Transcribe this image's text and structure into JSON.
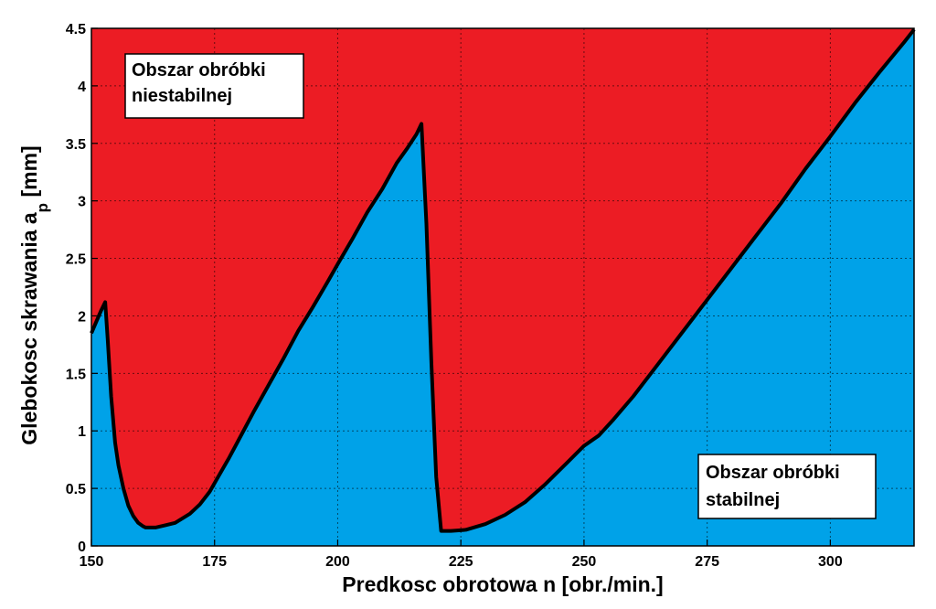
{
  "chart_data": {
    "type": "area",
    "title": "",
    "xlabel": "Predkosc obrotowa n [obr./min.]",
    "ylabel_main": "Glebokosc skrawania a",
    "ylabel_sub": "p",
    "ylabel_unit": " [mm]",
    "xlim": [
      150,
      317
    ],
    "ylim": [
      0,
      4.5
    ],
    "grid": true,
    "x_ticks": [
      150,
      175,
      200,
      225,
      250,
      275,
      300
    ],
    "y_ticks": [
      0,
      0.5,
      1,
      1.5,
      2,
      2.5,
      3,
      3.5,
      4,
      4.5
    ],
    "y_tick_labels": [
      "0",
      "0.5",
      "1",
      "1.5",
      "2",
      "2.5",
      "3",
      "3.5",
      "4",
      "4.5"
    ],
    "colors": {
      "unstable": "#ec1c24",
      "stable": "#00a2e8",
      "boundary": "#000000"
    },
    "series": [
      {
        "name": "stability boundary",
        "x": [
          150,
          151,
          152,
          152.8,
          153.3,
          154,
          154.8,
          155.5,
          156.5,
          157.5,
          158.5,
          159.5,
          160.5,
          161,
          162,
          163,
          165,
          167,
          170,
          172,
          174,
          176,
          178,
          180,
          183,
          186,
          189,
          192,
          195,
          198,
          200,
          203,
          206,
          209,
          212,
          214,
          216,
          217,
          218,
          219,
          220,
          221,
          223,
          226,
          230,
          234,
          238,
          242,
          246,
          250,
          253,
          256,
          260,
          265,
          270,
          275,
          280,
          285,
          290,
          295,
          300,
          305,
          310,
          315,
          317
        ],
        "y": [
          1.85,
          1.95,
          2.05,
          2.12,
          1.8,
          1.3,
          0.9,
          0.7,
          0.5,
          0.35,
          0.26,
          0.2,
          0.17,
          0.16,
          0.16,
          0.16,
          0.18,
          0.2,
          0.28,
          0.36,
          0.47,
          0.62,
          0.77,
          0.93,
          1.17,
          1.4,
          1.63,
          1.87,
          2.08,
          2.3,
          2.45,
          2.67,
          2.9,
          3.1,
          3.33,
          3.45,
          3.58,
          3.67,
          2.8,
          1.6,
          0.6,
          0.13,
          0.13,
          0.14,
          0.19,
          0.27,
          0.38,
          0.53,
          0.7,
          0.87,
          0.96,
          1.1,
          1.3,
          1.58,
          1.86,
          2.14,
          2.42,
          2.7,
          2.98,
          3.28,
          3.56,
          3.85,
          4.12,
          4.38,
          4.49
        ]
      }
    ],
    "annotations": [
      {
        "lines": [
          "Obszar obróbki",
          "niestabilnej"
        ],
        "region": "unstable"
      },
      {
        "lines": [
          "Obszar obróbki",
          "stabilnej"
        ],
        "region": "stable"
      }
    ]
  }
}
